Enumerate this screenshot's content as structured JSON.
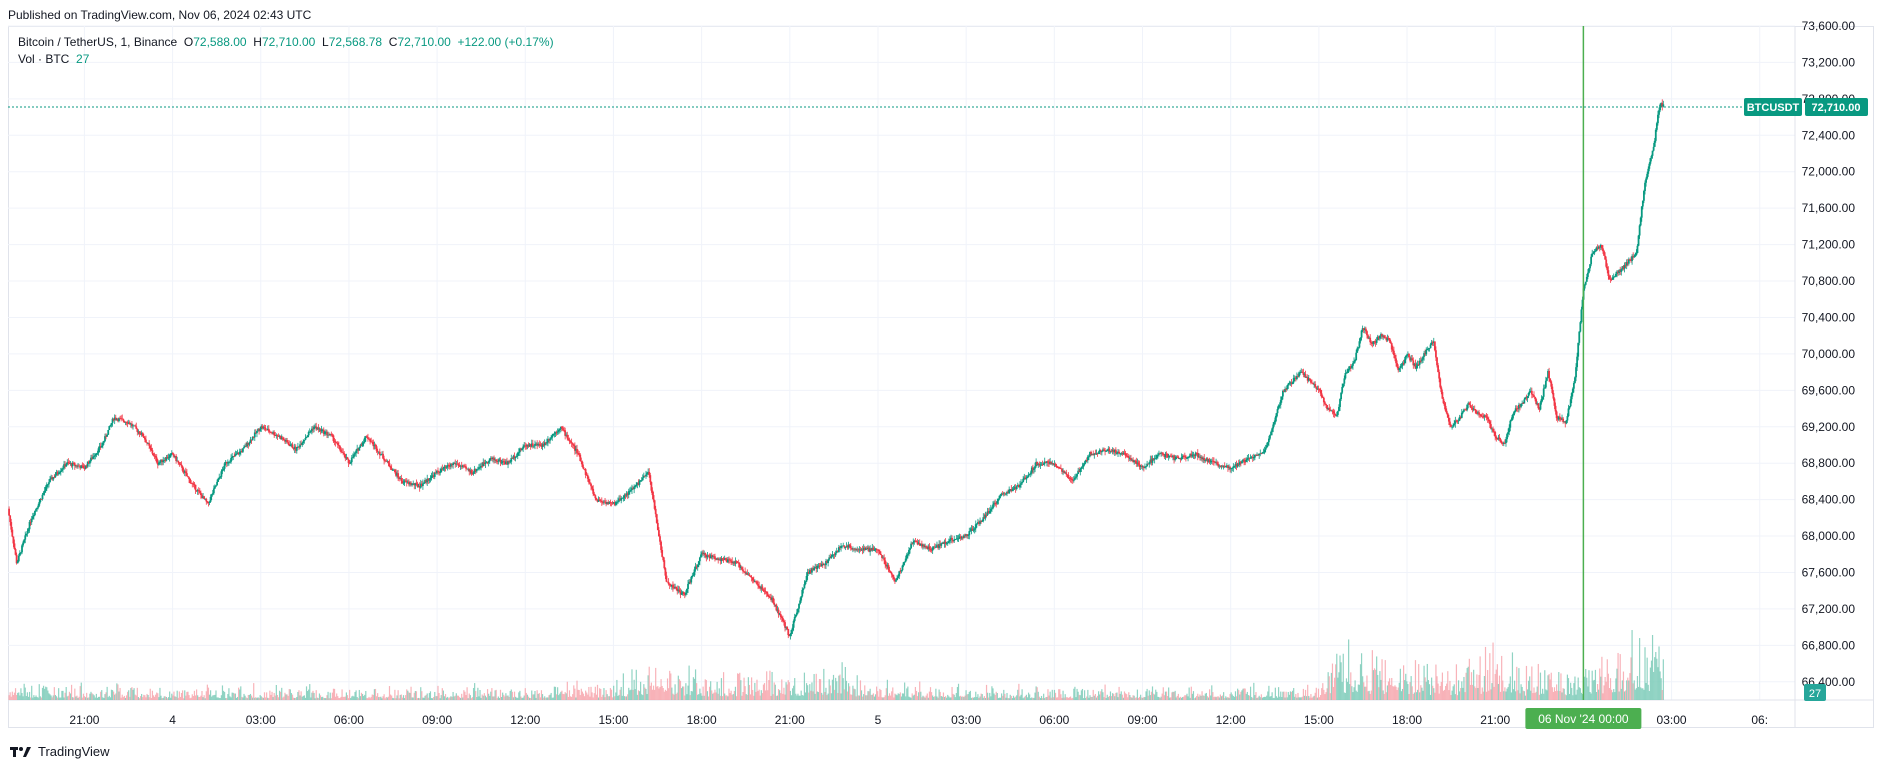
{
  "header": {
    "published": "Published on TradingView.com, Nov 06, 2024 02:43 UTC"
  },
  "legend": {
    "symbol": "Bitcoin / TetherUS, 1, Binance",
    "open_label": "O",
    "open": "72,588.00",
    "high_label": "H",
    "high": "72,710.00",
    "low_label": "L",
    "low": "72,568.78",
    "close_label": "C",
    "close": "72,710.00",
    "change": "+122.00 (+0.17%)",
    "vol_label": "Vol · BTC",
    "vol_value": "27"
  },
  "footer": {
    "brand": "TradingView"
  },
  "colors": {
    "up": "#089981",
    "down": "#f23645",
    "accent_green": "#4caf50",
    "grid": "#f0f3fa",
    "axis_text": "#131722"
  },
  "chart_data": {
    "type": "candlestick",
    "symbol_tag": "BTCUSDT",
    "last_price_label": "72,710.00",
    "last_price": 72710,
    "volume_label": "27",
    "cursor_time_label": "06 Nov '24  00:00",
    "y_ticks": [
      "73,600.00",
      "73,200.00",
      "72,800.00",
      "72,400.00",
      "72,000.00",
      "71,600.00",
      "71,200.00",
      "70,800.00",
      "70,400.00",
      "70,000.00",
      "69,600.00",
      "69,200.00",
      "68,800.00",
      "68,400.00",
      "68,000.00",
      "67,600.00",
      "67,200.00",
      "66,800.00",
      "66,400.00"
    ],
    "y_tick_values": [
      73600,
      73200,
      72800,
      72400,
      72000,
      71600,
      71200,
      70800,
      70400,
      70000,
      69600,
      69200,
      68800,
      68400,
      68000,
      67600,
      67200,
      66800,
      66400
    ],
    "ylim": [
      66200,
      73600
    ],
    "x_ticks": [
      "21:00",
      "4",
      "03:00",
      "06:00",
      "09:00",
      "12:00",
      "15:00",
      "18:00",
      "21:00",
      "5",
      "03:00",
      "06:00",
      "09:00",
      "12:00",
      "15:00",
      "18:00",
      "21:00",
      "03:00",
      "06:"
    ],
    "x_tick_hours": [
      21,
      24,
      27,
      30,
      33,
      36,
      39,
      42,
      45,
      48,
      51,
      54,
      57,
      60,
      63,
      66,
      69,
      75,
      78
    ],
    "x_range_hours": [
      18.4,
      79.2
    ],
    "cursor_hour": 72,
    "last_hour": 74.75,
    "price_path": {
      "hours": [
        18.4,
        18.7,
        19.2,
        19.8,
        20.4,
        21.0,
        21.6,
        22.0,
        22.5,
        23.0,
        23.5,
        24.0,
        24.6,
        25.2,
        25.8,
        26.4,
        27.0,
        27.6,
        28.2,
        28.8,
        29.4,
        30.0,
        30.6,
        31.2,
        31.8,
        32.4,
        33.0,
        33.6,
        34.2,
        34.8,
        35.4,
        36.0,
        36.6,
        37.2,
        37.8,
        38.4,
        39.0,
        39.6,
        40.2,
        40.8,
        41.4,
        42.0,
        42.6,
        43.2,
        43.8,
        44.4,
        45.0,
        45.6,
        46.2,
        46.8,
        47.4,
        48.0,
        48.6,
        49.2,
        49.8,
        50.4,
        51.0,
        51.6,
        52.2,
        52.8,
        53.4,
        54.0,
        54.6,
        55.2,
        55.8,
        56.4,
        57.0,
        57.6,
        58.2,
        58.8,
        59.4,
        60.0,
        60.6,
        61.2,
        61.8,
        62.4,
        63.0,
        63.3,
        63.6,
        63.9,
        64.2,
        64.5,
        64.8,
        65.1,
        65.4,
        65.7,
        66.0,
        66.3,
        66.6,
        66.9,
        67.2,
        67.5,
        67.8,
        68.1,
        68.4,
        68.7,
        69.0,
        69.3,
        69.6,
        69.9,
        70.2,
        70.5,
        70.8,
        71.1,
        71.4,
        71.7,
        72.0,
        72.3,
        72.6,
        72.9,
        73.2,
        73.5,
        73.8,
        74.1,
        74.4,
        74.6,
        74.75
      ],
      "prices": [
        68300,
        67700,
        68200,
        68600,
        68800,
        68750,
        69000,
        69300,
        69250,
        69100,
        68800,
        68900,
        68600,
        68350,
        68800,
        68950,
        69200,
        69100,
        68950,
        69200,
        69100,
        68800,
        69100,
        68850,
        68600,
        68550,
        68700,
        68800,
        68700,
        68850,
        68800,
        69000,
        69000,
        69200,
        68900,
        68400,
        68350,
        68500,
        68700,
        67500,
        67350,
        67800,
        67750,
        67700,
        67500,
        67300,
        66900,
        67600,
        67700,
        67900,
        67850,
        67850,
        67500,
        67950,
        67850,
        67950,
        68000,
        68200,
        68450,
        68550,
        68800,
        68800,
        68600,
        68900,
        68950,
        68900,
        68750,
        68900,
        68850,
        68900,
        68800,
        68750,
        68850,
        68950,
        69600,
        69800,
        69600,
        69400,
        69300,
        69800,
        69900,
        70300,
        70100,
        70200,
        70150,
        69800,
        70000,
        69850,
        70000,
        70150,
        69500,
        69200,
        69300,
        69450,
        69350,
        69300,
        69100,
        69000,
        69350,
        69450,
        69600,
        69400,
        69800,
        69300,
        69250,
        69700,
        70700,
        71100,
        71200,
        70800,
        70900,
        71000,
        71100,
        71900,
        72300,
        72750,
        72710
      ],
      "volatility_note": "approximate path read from chart"
    },
    "volume_profile": {
      "hours": [
        18.4,
        21.0,
        24.0,
        27.0,
        30.0,
        33.0,
        36.0,
        39.0,
        40.5,
        42.0,
        45.0,
        46.5,
        48.0,
        51.0,
        54.0,
        57.0,
        60.0,
        63.0,
        63.5,
        64.5,
        66.0,
        68.0,
        69.0,
        70.0,
        72.0,
        73.0,
        74.0,
        74.75
      ],
      "relative": [
        0.18,
        0.15,
        0.12,
        0.14,
        0.12,
        0.13,
        0.14,
        0.18,
        0.45,
        0.25,
        0.3,
        0.35,
        0.18,
        0.14,
        0.12,
        0.13,
        0.13,
        0.16,
        0.55,
        0.45,
        0.4,
        0.3,
        0.55,
        0.3,
        0.35,
        0.55,
        0.6,
        0.45
      ]
    }
  }
}
